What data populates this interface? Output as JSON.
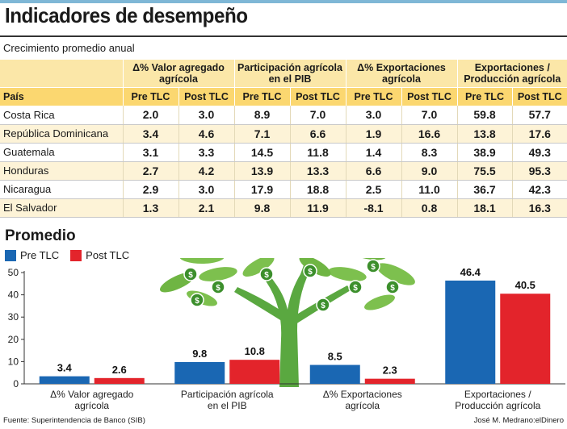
{
  "header": {
    "title": "Indicadores de desempeño",
    "subtitle": "Crecimiento promedio anual"
  },
  "table": {
    "groups": [
      "Δ% Valor agregado agrícola",
      "Participación agrícola en el PIB",
      "Δ% Exportaciones agrícola",
      "Exportaciones / Producción agrícola"
    ],
    "country_header": "País",
    "sub": [
      "Pre TLC",
      "Post TLC"
    ],
    "rows": [
      {
        "country": "Costa Rica",
        "values": [
          "2.0",
          "3.0",
          "8.9",
          "7.0",
          "3.0",
          "7.0",
          "59.8",
          "57.7"
        ]
      },
      {
        "country": "República Dominicana",
        "values": [
          "3.4",
          "4.6",
          "7.1",
          "6.6",
          "1.9",
          "16.6",
          "13.8",
          "17.6"
        ]
      },
      {
        "country": "Guatemala",
        "values": [
          "3.1",
          "3.3",
          "14.5",
          "11.8",
          "1.4",
          "8.3",
          "38.9",
          "49.3"
        ]
      },
      {
        "country": "Honduras",
        "values": [
          "2.7",
          "4.2",
          "13.9",
          "13.3",
          "6.6",
          "9.0",
          "75.5",
          "95.3"
        ]
      },
      {
        "country": "Nicaragua",
        "values": [
          "2.9",
          "3.0",
          "17.9",
          "18.8",
          "2.5",
          "11.0",
          "36.7",
          "42.3"
        ]
      },
      {
        "country": "El Salvador",
        "values": [
          "1.3",
          "2.1",
          "9.8",
          "11.9",
          "-8.1",
          "0.8",
          "18.1",
          "16.3"
        ]
      }
    ]
  },
  "chart_data": {
    "type": "bar",
    "title": "Promedio",
    "categories": [
      [
        "Δ% Valor agregado",
        "agrícola"
      ],
      [
        "Participación agrícola",
        "en el PIB"
      ],
      [
        "Δ% Exportaciones",
        "agrícola"
      ],
      [
        "Exportaciones /",
        "Producción agrícola"
      ]
    ],
    "series": [
      {
        "name": "Pre TLC",
        "values": [
          3.4,
          9.8,
          8.5,
          46.4
        ],
        "color": "#1a67b3"
      },
      {
        "name": "Post TLC",
        "values": [
          2.6,
          10.8,
          2.3,
          40.5
        ],
        "color": "#e3242b"
      }
    ],
    "ylim": [
      0,
      50
    ],
    "yticks": [
      0,
      10,
      20,
      30,
      40,
      50
    ],
    "grid": false,
    "legend": "top-left",
    "decoration": "money-tree-illustration"
  },
  "footer": {
    "source": "Fuente: Superintendencia de Banco (SIB)",
    "credit": "José M. Medrano:elDinero"
  }
}
